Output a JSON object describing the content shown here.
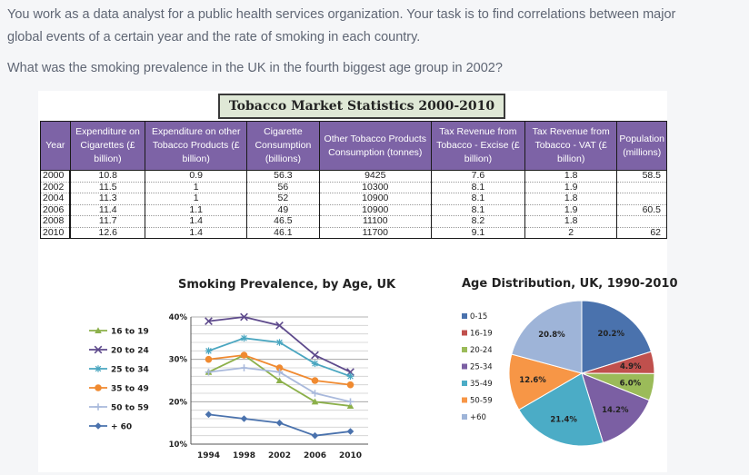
{
  "question": {
    "line1": "You work as a data analyst for a public health services organization. Your task is to find correlations between major",
    "line2": "global events of a certain year and the rate of smoking in each country.",
    "line3": "What was the smoking prevalence in the UK in the fourth biggest age group in 2002?"
  },
  "main_title": "Tobacco Market Statistics 2000-2010",
  "table": {
    "headers": [
      "Year",
      "Expenditure on Cigarettes (£ billion)",
      "Expenditure on other Tobacco Products (£ billion)",
      "Cigarette Consumption (billions)",
      "Other Tobacco Products Consumption (tonnes)",
      "Tax Revenue from Tobacco - Excise (£ billion)",
      "Tax Revenue from Tobacco - VAT (£ billion)",
      "Population (millions)"
    ],
    "rows": [
      [
        "2000",
        "10.8",
        "0.9",
        "56.3",
        "9425",
        "7.6",
        "1.8",
        "58.5"
      ],
      [
        "2002",
        "11.5",
        "1",
        "56",
        "10300",
        "8.1",
        "1.9",
        ""
      ],
      [
        "2004",
        "11.3",
        "1",
        "52",
        "10900",
        "8.1",
        "1.8",
        ""
      ],
      [
        "2006",
        "11.4",
        "1.1",
        "49",
        "10900",
        "8.1",
        "1.9",
        "60.5"
      ],
      [
        "2008",
        "11.7",
        "1.4",
        "46.5",
        "11100",
        "8.2",
        "1.8",
        ""
      ],
      [
        "2010",
        "12.6",
        "1.4",
        "46.1",
        "11700",
        "9.1",
        "2",
        "62"
      ]
    ]
  },
  "chart_data": [
    {
      "type": "line",
      "title": "Smoking Prevalence, by Age, UK",
      "x": [
        1994,
        1998,
        2002,
        2006,
        2010
      ],
      "y_ticks": [
        "10%",
        "20%",
        "30%",
        "40%"
      ],
      "ylim": [
        10,
        40
      ],
      "grid": true,
      "legend_position": "left",
      "series": [
        {
          "name": "16 to 19",
          "color": "#8cb04a",
          "marker": "triangle",
          "values": [
            27,
            31,
            25,
            20,
            19
          ]
        },
        {
          "name": "20 to 24",
          "color": "#5e4a8c",
          "marker": "x",
          "values": [
            39,
            40,
            38,
            31,
            27
          ]
        },
        {
          "name": "25 to 34",
          "color": "#4aa6c0",
          "marker": "star",
          "values": [
            32,
            35,
            34,
            29,
            26
          ]
        },
        {
          "name": "35 to 49",
          "color": "#f08a30",
          "marker": "circle",
          "values": [
            30,
            31,
            28,
            25,
            24
          ]
        },
        {
          "name": "50 to 59",
          "color": "#a9b9dc",
          "marker": "plus",
          "values": [
            27,
            28,
            27,
            22,
            20
          ]
        },
        {
          "name": "+ 60",
          "color": "#4a72ad",
          "marker": "diamond",
          "values": [
            17,
            16,
            15,
            12,
            13
          ]
        }
      ]
    },
    {
      "type": "pie",
      "title": "Age Distribution, UK, 1990-2010",
      "legend_position": "left",
      "categories": [
        "0-15",
        "16-19",
        "20-24",
        "25-34",
        "35-49",
        "50-59",
        "+60"
      ],
      "values": [
        20.2,
        4.9,
        6.0,
        14.2,
        21.4,
        12.6,
        20.8
      ],
      "labels": [
        "20.2%",
        "4.9%",
        "6.0%",
        "14.2%",
        "21.4%",
        "12.6%",
        "20.8%"
      ],
      "colors": [
        "#4a72ad",
        "#c0504d",
        "#9bbb59",
        "#7b5fa3",
        "#4bacc6",
        "#f79646",
        "#9eb4d8"
      ]
    }
  ]
}
